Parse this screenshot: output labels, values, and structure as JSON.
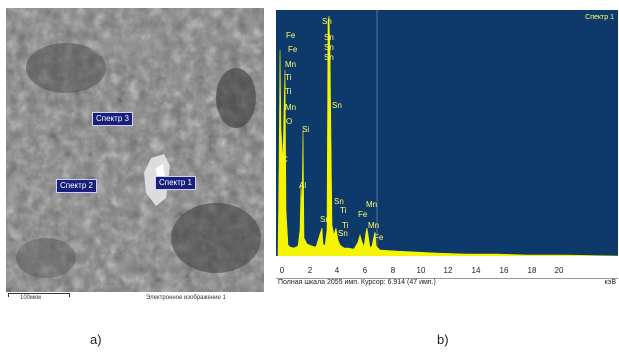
{
  "sem": {
    "labels": {
      "s3": "Спектр 3",
      "s2": "Спектр 2",
      "s1": "Спектр 1"
    },
    "scale": "100мкм",
    "caption": "Электронное изображение 1"
  },
  "eds": {
    "legend": "Спектр 1",
    "ticks": [
      "0",
      "2",
      "4",
      "6",
      "8",
      "10",
      "12",
      "14",
      "16",
      "18",
      "20"
    ],
    "unit": "кэВ",
    "status": "Полная шкала 2055 имп. Курсор: 6.914  (47 имп.)",
    "peaks": [
      {
        "t": "Sn"
      },
      {
        "t": "Sn"
      },
      {
        "t": "Sn"
      },
      {
        "t": "Sn"
      },
      {
        "t": "Fe"
      },
      {
        "t": "Fe"
      },
      {
        "t": "Mn"
      },
      {
        "t": "Ti"
      },
      {
        "t": "Ti"
      },
      {
        "t": "Mn"
      },
      {
        "t": "O"
      },
      {
        "t": "Si"
      },
      {
        "t": "C"
      },
      {
        "t": "Al"
      },
      {
        "t": "Sn"
      },
      {
        "t": "Sn"
      },
      {
        "t": "Ti"
      },
      {
        "t": "Sn"
      },
      {
        "t": "Ti"
      },
      {
        "t": "Sn"
      },
      {
        "t": "Mn"
      },
      {
        "t": "Fe"
      },
      {
        "t": "Mn"
      },
      {
        "t": "Fe"
      }
    ]
  },
  "captions": {
    "a": "a)",
    "b": "b)"
  }
}
